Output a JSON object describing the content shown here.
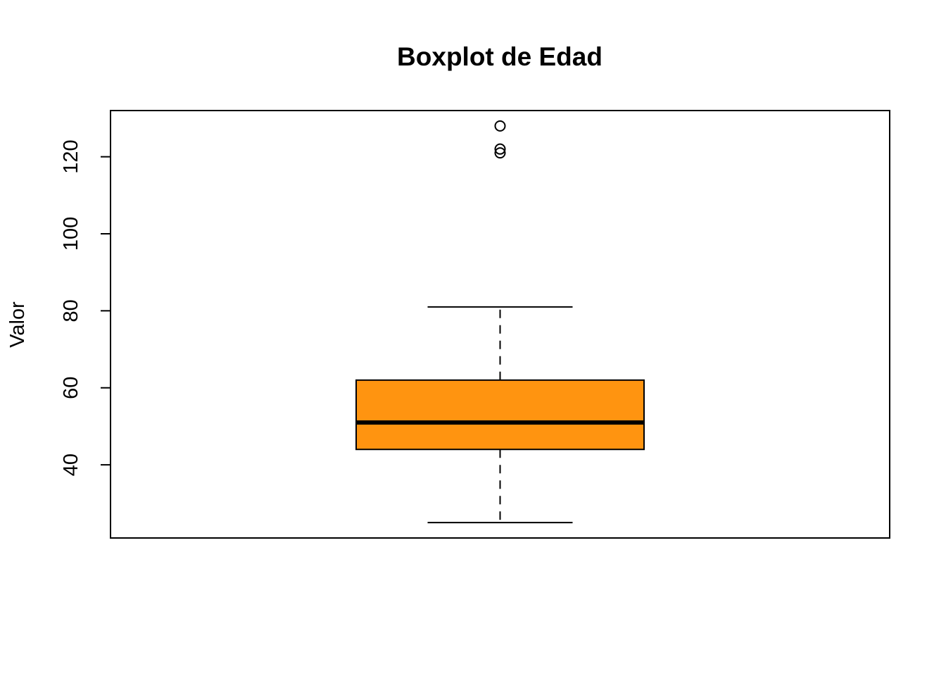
{
  "chart_data": {
    "type": "boxplot",
    "title": "Boxplot de Edad",
    "xlabel": "",
    "ylabel": "Valor",
    "ylim": [
      21,
      132
    ],
    "yticks": [
      40,
      60,
      80,
      100,
      120
    ],
    "grid": false,
    "legend": "none",
    "box_color": "#FF9410",
    "series": [
      {
        "min": 25,
        "q1": 44,
        "median": 51,
        "q3": 62,
        "max": 81,
        "outliers": [
          121,
          122,
          128
        ]
      }
    ]
  }
}
